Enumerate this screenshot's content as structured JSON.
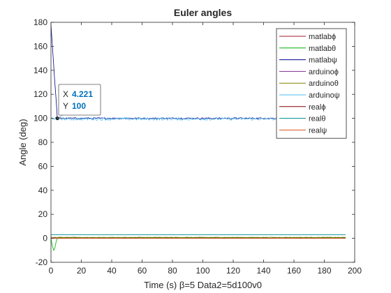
{
  "chart_data": {
    "type": "line",
    "title": "Euler angles",
    "xlabel": "Time (s) β=5 Data2=5d100v0",
    "ylabel": "Angle (deg)",
    "xlim": [
      0,
      200
    ],
    "ylim": [
      -20,
      180
    ],
    "xticks": [
      0,
      20,
      40,
      60,
      80,
      100,
      120,
      140,
      160,
      180,
      200
    ],
    "yticks": [
      -20,
      0,
      20,
      40,
      60,
      80,
      100,
      120,
      140,
      160,
      180
    ],
    "grid": false,
    "legend_position": "top-right",
    "series": [
      {
        "name": "matlabϕ",
        "color": "#a2142f",
        "x": [
          0,
          4.2,
          10,
          50,
          100,
          150,
          194
        ],
        "y": [
          0.2,
          0.2,
          0.3,
          0.2,
          0.3,
          0.2,
          0.3
        ],
        "noise": 0.3
      },
      {
        "name": "matlabθ",
        "color": "#00b000",
        "x": [
          0,
          0.8,
          1.8,
          2.6,
          3.4,
          4.2,
          6,
          10,
          50,
          100,
          150,
          194
        ],
        "y": [
          0,
          -6,
          -10,
          -8,
          -3,
          0,
          0.5,
          0.5,
          0.4,
          0.5,
          0.4,
          0.5
        ],
        "noise": 0.3
      },
      {
        "name": "matlabψ",
        "color": "#00008b",
        "x": [
          0,
          2,
          4.221,
          50,
          100,
          150,
          194
        ],
        "y": [
          178,
          140,
          100,
          100,
          100,
          100,
          100
        ],
        "noise": 0.6
      },
      {
        "name": "arduinoϕ",
        "color": "#7e2f8e",
        "x": [
          0,
          194
        ],
        "y": [
          0.1,
          0.1
        ],
        "noise": 0.2
      },
      {
        "name": "arduinoθ",
        "color": "#808000",
        "x": [
          0,
          194
        ],
        "y": [
          0.8,
          0.8
        ],
        "noise": 0.2
      },
      {
        "name": "arduinoψ",
        "color": "#4dbeee",
        "x": [
          0,
          4,
          10,
          50,
          100,
          150,
          194
        ],
        "y": [
          100,
          100,
          99.5,
          99.5,
          99.5,
          99.5,
          99.5
        ],
        "noise": 1.2
      },
      {
        "name": "realϕ",
        "color": "#8b0000",
        "x": [
          0,
          194
        ],
        "y": [
          0,
          0
        ],
        "noise": 0
      },
      {
        "name": "realθ",
        "color": "#008b8b",
        "x": [
          0,
          194
        ],
        "y": [
          3,
          3
        ],
        "noise": 0
      },
      {
        "name": "realψ",
        "color": "#d95319",
        "x": [
          0,
          194
        ],
        "y": [
          0,
          0
        ],
        "noise": 0
      }
    ],
    "datatip": {
      "x_label": "X",
      "y_label": "Y",
      "x_value": "4.221",
      "y_value": "100",
      "x": 4.221,
      "y": 100
    }
  }
}
